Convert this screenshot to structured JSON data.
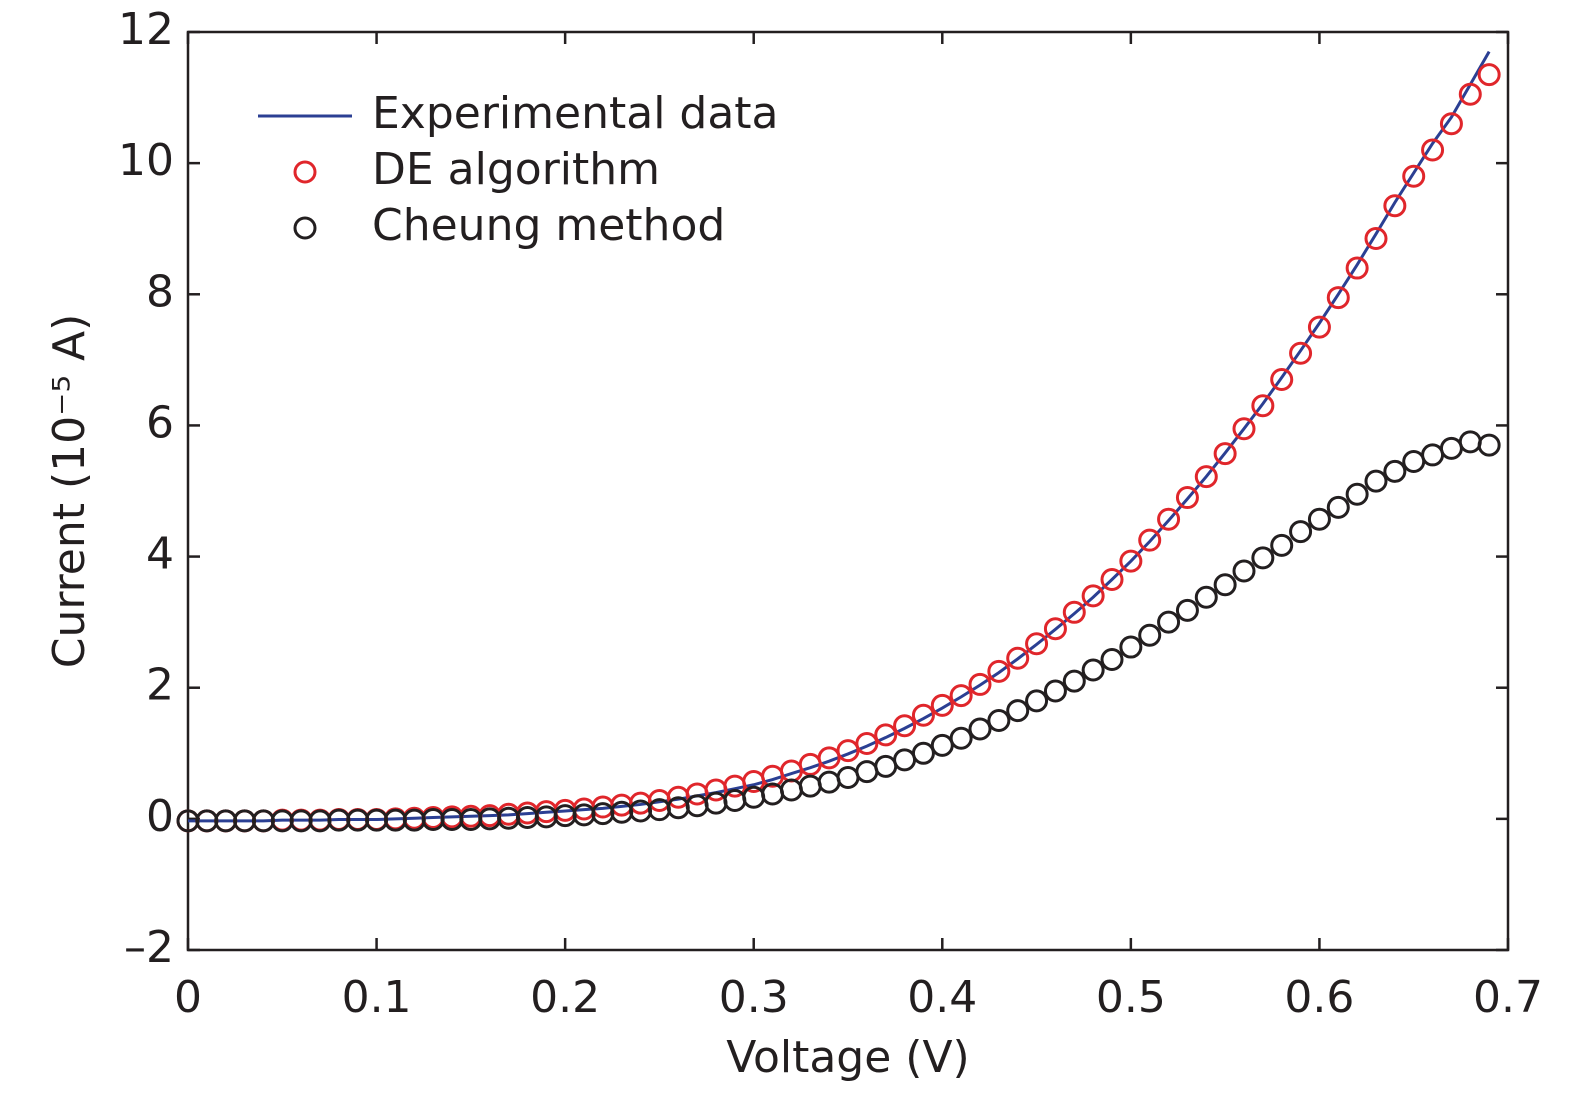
{
  "chart_data": {
    "type": "line-scatter",
    "x_label": "Voltage (V)",
    "y_label": "Current (10⁻⁵ A)",
    "xlim": [
      0,
      0.7
    ],
    "ylim": [
      -2,
      12
    ],
    "xticks": [
      0,
      0.1,
      0.2,
      0.3,
      0.4,
      0.5,
      0.6,
      0.7
    ],
    "yticks": [
      {
        "value": -2,
        "label": "–2"
      },
      0,
      2,
      4,
      6,
      8,
      10,
      12
    ],
    "legend": "top-left",
    "x": [
      0,
      0.01,
      0.02,
      0.03,
      0.04,
      0.05,
      0.06,
      0.07,
      0.08,
      0.09,
      0.1,
      0.11,
      0.12,
      0.13,
      0.14,
      0.15,
      0.16,
      0.17,
      0.18,
      0.19,
      0.2,
      0.21,
      0.22,
      0.23,
      0.24,
      0.25,
      0.26,
      0.27,
      0.28,
      0.29,
      0.3,
      0.31,
      0.32,
      0.33,
      0.34,
      0.35,
      0.36,
      0.37,
      0.38,
      0.39,
      0.4,
      0.41,
      0.42,
      0.43,
      0.44,
      0.45,
      0.46,
      0.47,
      0.48,
      0.49,
      0.5,
      0.51,
      0.52,
      0.53,
      0.54,
      0.55,
      0.56,
      0.57,
      0.58,
      0.59,
      0.6,
      0.61,
      0.62,
      0.63,
      0.64,
      0.65,
      0.66,
      0.67,
      0.68,
      0.69
    ],
    "series": [
      {
        "name": "Experimental data",
        "kind": "line",
        "color": "#2b3f93",
        "values": [
          -0.03,
          -0.03,
          -0.03,
          -0.03,
          -0.03,
          -0.02,
          -0.02,
          -0.02,
          -0.01,
          -0.01,
          -0.01,
          0,
          0.01,
          0.02,
          0.03,
          0.04,
          0.05,
          0.06,
          0.08,
          0.1,
          0.12,
          0.14,
          0.16,
          0.19,
          0.22,
          0.26,
          0.3,
          0.35,
          0.4,
          0.46,
          0.52,
          0.6,
          0.69,
          0.78,
          0.88,
          0.99,
          1.11,
          1.24,
          1.38,
          1.53,
          1.69,
          1.86,
          2.04,
          2.23,
          2.44,
          2.66,
          2.89,
          3.13,
          3.38,
          3.65,
          3.93,
          4.23,
          4.55,
          4.88,
          5.22,
          5.58,
          5.95,
          6.33,
          6.73,
          7.14,
          7.56,
          8.0,
          8.45,
          8.92,
          9.4,
          9.85,
          10.3,
          10.7,
          11.2,
          11.7
        ]
      },
      {
        "name": "DE algorithm",
        "kind": "markers",
        "color": "#e0262b",
        "values": [
          -0.03,
          -0.03,
          -0.03,
          -0.03,
          -0.03,
          -0.02,
          -0.02,
          -0.02,
          -0.01,
          -0.01,
          -0.01,
          0,
          0.01,
          0.02,
          0.03,
          0.04,
          0.05,
          0.07,
          0.09,
          0.11,
          0.13,
          0.15,
          0.18,
          0.21,
          0.24,
          0.28,
          0.33,
          0.38,
          0.44,
          0.5,
          0.57,
          0.65,
          0.73,
          0.83,
          0.93,
          1.04,
          1.15,
          1.28,
          1.42,
          1.58,
          1.73,
          1.88,
          2.05,
          2.25,
          2.45,
          2.67,
          2.9,
          3.15,
          3.4,
          3.65,
          3.93,
          4.25,
          4.57,
          4.9,
          5.22,
          5.57,
          5.95,
          6.3,
          6.7,
          7.1,
          7.5,
          7.95,
          8.4,
          8.85,
          9.35,
          9.8,
          10.2,
          10.6,
          11.05,
          11.35
        ]
      },
      {
        "name": "Cheung method",
        "kind": "markers",
        "color": "#231f20",
        "values": [
          -0.03,
          -0.03,
          -0.03,
          -0.03,
          -0.03,
          -0.03,
          -0.03,
          -0.03,
          -0.02,
          -0.02,
          -0.02,
          -0.02,
          -0.02,
          -0.01,
          -0.01,
          -0.01,
          0,
          0.01,
          0.02,
          0.03,
          0.05,
          0.06,
          0.08,
          0.1,
          0.12,
          0.14,
          0.17,
          0.2,
          0.24,
          0.28,
          0.33,
          0.38,
          0.44,
          0.5,
          0.56,
          0.63,
          0.72,
          0.8,
          0.9,
          1.0,
          1.12,
          1.23,
          1.37,
          1.5,
          1.65,
          1.8,
          1.95,
          2.1,
          2.27,
          2.43,
          2.62,
          2.8,
          3.0,
          3.18,
          3.38,
          3.57,
          3.78,
          3.98,
          4.17,
          4.38,
          4.57,
          4.75,
          4.95,
          5.15,
          5.3,
          5.45,
          5.55,
          5.65,
          5.75,
          5.7
        ]
      }
    ]
  }
}
